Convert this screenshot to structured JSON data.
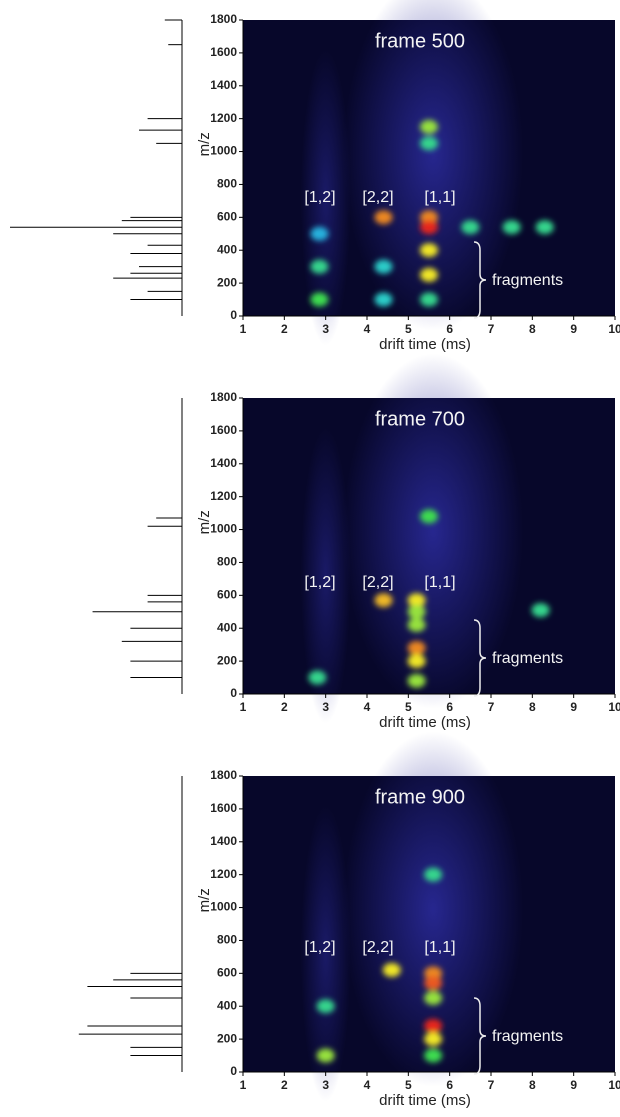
{
  "chart_data": [
    {
      "type": "heatmap",
      "frame_label": "frame 500",
      "ylabel": "m/z",
      "xlabel": "drift time (ms)",
      "labels": [
        "[1,2]",
        "[2,2]",
        "[1,1]"
      ],
      "annotation": "fragments",
      "xlim": [
        1,
        10
      ],
      "xticks": [
        1,
        2,
        3,
        4,
        5,
        6,
        7,
        8,
        9,
        10
      ],
      "ylim": [
        0,
        1800
      ],
      "yticks": [
        0,
        200,
        400,
        600,
        800,
        1000,
        1200,
        1400,
        1600,
        1800
      ],
      "spots": {
        "x": [
          2.85,
          2.85,
          2.85,
          4.4,
          4.4,
          4.4,
          5.5,
          5.5,
          5.5,
          5.5,
          5.5,
          5.5,
          5.5,
          6.5,
          7.5,
          8.3
        ],
        "y": [
          100,
          300,
          500,
          600,
          300,
          100,
          1150,
          1050,
          600,
          540,
          400,
          250,
          100,
          540,
          540,
          540
        ],
        "values": [
          0.6,
          0.5,
          0.3,
          0.9,
          0.4,
          0.4,
          0.7,
          0.5,
          0.9,
          1.0,
          0.8,
          0.8,
          0.5,
          0.5,
          0.5,
          0.5
        ]
      },
      "spectrum": {
        "mz": [
          1800,
          1650,
          1200,
          1130,
          1050,
          600,
          580,
          540,
          500,
          430,
          380,
          300,
          260,
          230,
          150,
          100
        ],
        "intensity": [
          0.1,
          0.08,
          0.2,
          0.25,
          0.15,
          0.3,
          0.35,
          1.0,
          0.4,
          0.2,
          0.3,
          0.25,
          0.3,
          0.4,
          0.2,
          0.3
        ]
      }
    },
    {
      "type": "heatmap",
      "frame_label": "frame 700",
      "ylabel": "m/z",
      "xlabel": "drift time (ms)",
      "labels": [
        "[1,2]",
        "[2,2]",
        "[1,1]"
      ],
      "annotation": "fragments",
      "xlim": [
        1,
        10
      ],
      "xticks": [
        1,
        2,
        3,
        4,
        5,
        6,
        7,
        8,
        9,
        10
      ],
      "ylim": [
        0,
        1800
      ],
      "yticks": [
        0,
        200,
        400,
        600,
        800,
        1000,
        1200,
        1400,
        1600,
        1800
      ],
      "spots": {
        "x": [
          2.8,
          4.4,
          5.2,
          5.2,
          5.2,
          5.2,
          5.2,
          5.2,
          5.5,
          8.2
        ],
        "y": [
          100,
          570,
          570,
          500,
          420,
          280,
          200,
          80,
          1080,
          510
        ],
        "values": [
          0.5,
          0.85,
          0.8,
          0.7,
          0.7,
          0.9,
          0.8,
          0.7,
          0.6,
          0.5
        ]
      },
      "spectrum": {
        "mz": [
          1070,
          1020,
          600,
          560,
          500,
          400,
          320,
          200,
          100
        ],
        "intensity": [
          0.15,
          0.2,
          0.2,
          0.2,
          0.52,
          0.3,
          0.35,
          0.3,
          0.3
        ]
      }
    },
    {
      "type": "heatmap",
      "frame_label": "frame 900",
      "ylabel": "m/z",
      "xlabel": "drift time (ms)",
      "labels": [
        "[1,2]",
        "[2,2]",
        "[1,1]"
      ],
      "annotation": "fragments",
      "xlim": [
        1,
        10
      ],
      "xticks": [
        1,
        2,
        3,
        4,
        5,
        6,
        7,
        8,
        9,
        10
      ],
      "ylim": [
        0,
        1800
      ],
      "yticks": [
        0,
        200,
        400,
        600,
        800,
        1000,
        1200,
        1400,
        1600,
        1800
      ],
      "spots": {
        "x": [
          3.0,
          3.0,
          4.6,
          5.6,
          5.6,
          5.6,
          5.6,
          5.6,
          5.6,
          5.6
        ],
        "y": [
          100,
          400,
          620,
          600,
          540,
          450,
          280,
          200,
          100,
          1200
        ],
        "values": [
          0.7,
          0.5,
          0.8,
          0.9,
          0.95,
          0.7,
          1.0,
          0.8,
          0.6,
          0.5
        ]
      },
      "spectrum": {
        "mz": [
          600,
          560,
          520,
          450,
          280,
          230,
          150,
          100
        ],
        "intensity": [
          0.3,
          0.4,
          0.55,
          0.3,
          0.55,
          0.6,
          0.3,
          0.3
        ]
      }
    }
  ]
}
